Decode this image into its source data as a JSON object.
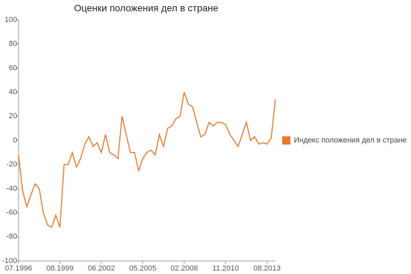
{
  "chart_data": {
    "type": "line",
    "title": "Оценки положения дел в стране",
    "categories": [
      "07.1996",
      null,
      null,
      null,
      null,
      null,
      null,
      null,
      null,
      null,
      "08.1999",
      null,
      null,
      null,
      null,
      null,
      null,
      null,
      null,
      null,
      "06.2002",
      null,
      null,
      null,
      null,
      null,
      null,
      null,
      null,
      null,
      "05.2005",
      null,
      null,
      null,
      null,
      null,
      null,
      null,
      null,
      null,
      "02.2008",
      null,
      null,
      null,
      null,
      null,
      null,
      null,
      null,
      null,
      "11.2010",
      null,
      null,
      null,
      null,
      null,
      null,
      null,
      null,
      null,
      "08.2013",
      null,
      null
    ],
    "series": [
      {
        "name": "Индекс положения дел в стране",
        "color": "#e8782a",
        "values": [
          -12,
          -42,
          -55,
          -45,
          -36,
          -40,
          -60,
          -70,
          -72,
          -62,
          -72,
          -20,
          -20,
          -10,
          -22,
          -15,
          -3,
          3,
          -5,
          -2,
          -10,
          5,
          -10,
          -12,
          -15,
          20,
          5,
          -10,
          -10,
          -25,
          -15,
          -10,
          -8,
          -12,
          5,
          -5,
          10,
          12,
          18,
          20,
          40,
          30,
          28,
          15,
          3,
          5,
          15,
          12,
          15,
          15,
          13,
          5,
          0,
          -5,
          5,
          15,
          0,
          3,
          -3,
          -2,
          -3,
          2,
          34
        ]
      }
    ],
    "ylim": [
      -100,
      100
    ],
    "yticks": [
      -100,
      -80,
      -60,
      -40,
      -20,
      0,
      20,
      40,
      60,
      80,
      100
    ],
    "grid": false,
    "legend": "right"
  }
}
